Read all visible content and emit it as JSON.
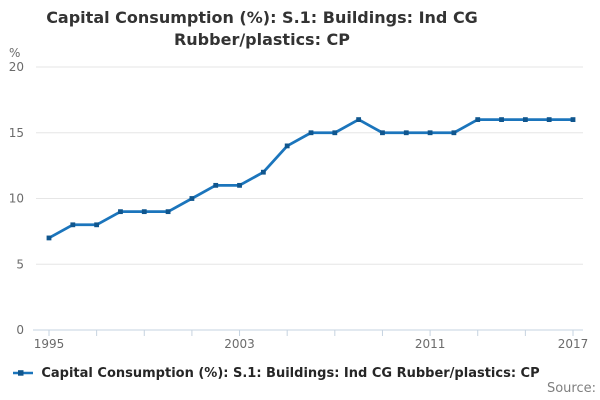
{
  "title": {
    "line1": "Capital Consumption (%): S.1: Buildings: Ind CG",
    "line2": "Rubber/plastics: CP"
  },
  "chart_data": {
    "type": "line",
    "title": "Capital Consumption (%): S.1: Buildings: Ind CG Rubber/plastics: CP",
    "xlabel": "",
    "ylabel": "%",
    "x": [
      1995,
      1996,
      1997,
      1998,
      1999,
      2000,
      2001,
      2002,
      2003,
      2004,
      2005,
      2006,
      2007,
      2008,
      2009,
      2010,
      2011,
      2012,
      2013,
      2014,
      2015,
      2016,
      2017
    ],
    "series": [
      {
        "name": "Capital Consumption (%): S.1: Buildings: Ind CG Rubber/plastics: CP",
        "values": [
          7,
          8,
          8,
          9,
          9,
          9,
          10,
          11,
          11,
          12,
          14,
          15,
          15,
          16,
          15,
          15,
          15,
          15,
          16,
          16,
          16,
          16,
          16
        ]
      }
    ],
    "ylim": [
      0,
      20
    ],
    "yticks": [
      0,
      5,
      10,
      15,
      20
    ],
    "xtick_labels": [
      1995,
      2003,
      2011,
      2017
    ],
    "xtick_minor_step": 2,
    "grid": true,
    "legend_position": "bottom",
    "colors": {
      "line": "#1b75bc",
      "marker": "#10568e",
      "grid": "#e6e6e6",
      "axis": "#c6d3e0",
      "tick_label": "#6b6b6b",
      "title": "#333333"
    }
  },
  "footer": {
    "source_label": "Source:"
  }
}
